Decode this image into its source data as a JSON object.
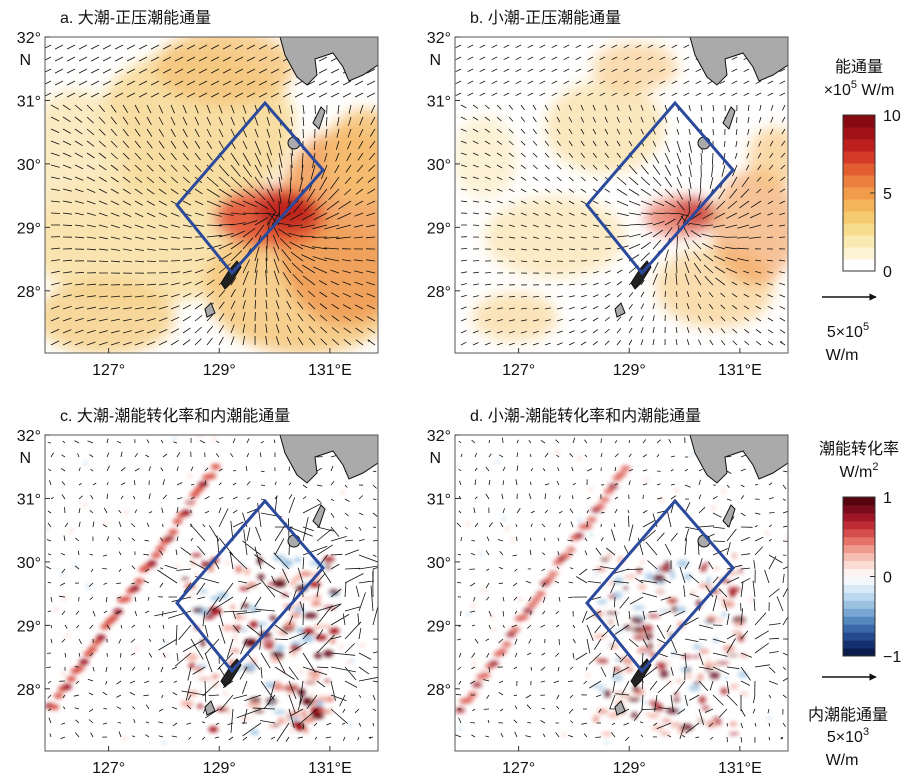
{
  "panels": [
    {
      "title": "a. 大潮-正压潮能通量"
    },
    {
      "title": "b. 小潮-正压潮能通量"
    },
    {
      "title": "c. 大潮-潮能转化率和内潮能通量"
    },
    {
      "title": "d. 小潮-潮能转化率和内潮能通量"
    }
  ],
  "axes": {
    "xlim": [
      125.85,
      131.87
    ],
    "ylim": [
      27.02,
      32
    ],
    "xticks": [
      {
        "value": 127,
        "label": "127°"
      },
      {
        "value": 129,
        "label": "129°"
      },
      {
        "value": 131,
        "label": "131°E"
      }
    ],
    "yticks": [
      {
        "value": 28,
        "label": "28°"
      },
      {
        "value": 29,
        "label": "29°"
      },
      {
        "value": 30,
        "label": "30°"
      },
      {
        "value": 31,
        "label": "31°"
      },
      {
        "value": 32,
        "label": "32°"
      }
    ],
    "hemisphere": "N"
  },
  "colorbars": [
    {
      "title": "能通量",
      "unit_prefix": "×10",
      "unit_exp": "5",
      "unit_suffix": " W/m",
      "lim": [
        0,
        10
      ],
      "ticks": [
        0,
        5,
        10
      ],
      "colors": [
        "#ffffff",
        "#fcf4d4",
        "#faeab2",
        "#f8dc8e",
        "#f6cb70",
        "#f3b45a",
        "#f09c4a",
        "#eb7f3d",
        "#e25e31",
        "#d43a27",
        "#bd1f1f",
        "#a31118",
        "#870a12"
      ]
    },
    {
      "title": "潮能转化率",
      "unit_prefix": "W/m",
      "unit_exp": "2",
      "unit_suffix": "",
      "lim": [
        -1,
        1
      ],
      "ticks": [
        {
          "value": -1,
          "label": "−1"
        },
        0,
        1
      ],
      "colors": [
        "#0a1a4a",
        "#15306e",
        "#244b8f",
        "#3a68aa",
        "#5688c0",
        "#78a6d2",
        "#9cc2e2",
        "#bcd8ee",
        "#d9e9f6",
        "#f4f8fc",
        "#fdf3f0",
        "#fbdcd4",
        "#f6bdb2",
        "#ef9a8c",
        "#e5736a",
        "#d64d4d",
        "#be2d36",
        "#9f1628",
        "#7a0b1d",
        "#55040f"
      ]
    }
  ],
  "arrow_keys": [
    {
      "mantissa": "5×10",
      "exp": "5",
      "unit": "W/m"
    },
    {
      "title": "内潮能通量",
      "mantissa": "5×10",
      "exp": "3",
      "unit": "W/m"
    }
  ]
}
